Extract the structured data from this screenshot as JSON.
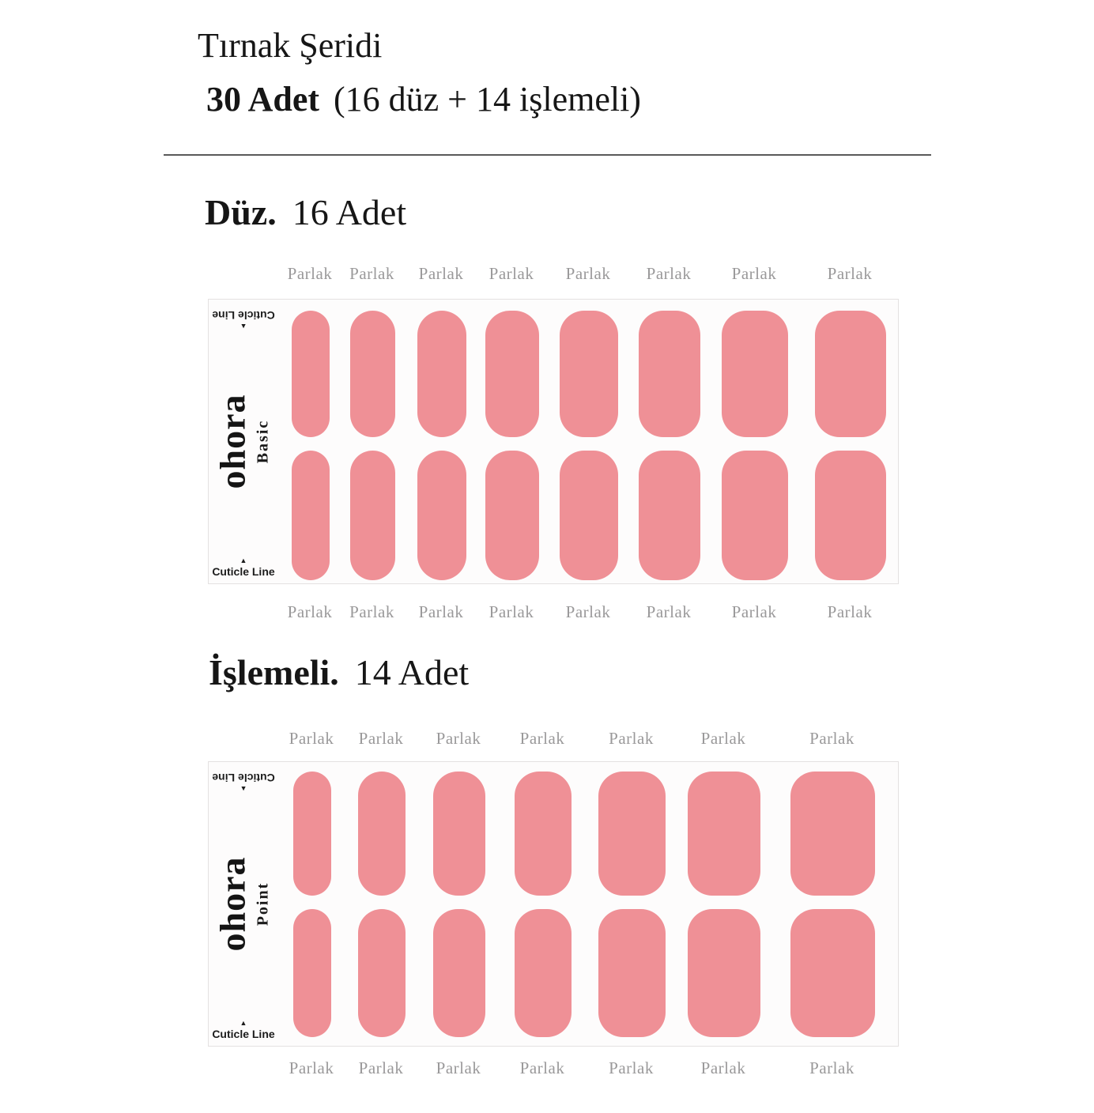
{
  "header": {
    "title": "Tırnak Şeridi",
    "count_bold": "30 Adet",
    "count_detail": "(16 düz + 14 işlemeli)"
  },
  "sections": [
    {
      "heading_bold": "Düz.",
      "heading_count": "16 Adet",
      "brand": "ohora",
      "line_name": "Basic",
      "cuticle_label": "Cuticle Line",
      "cuticle_arrow_icon": "▲",
      "finish_label": "Parlak",
      "columns": 8,
      "rows": 2,
      "total_nails": 16
    },
    {
      "heading_bold": "İşlemeli.",
      "heading_count": "14 Adet",
      "brand": "ohora",
      "line_name": "Point",
      "cuticle_label": "Cuticle Line",
      "cuticle_arrow_icon": "▲",
      "finish_label": "Parlak",
      "columns": 7,
      "rows": 2,
      "total_nails": 14
    }
  ],
  "colors": {
    "nail_pink": "#ef9096",
    "label_gray": "#9a999a",
    "text_black": "#161616",
    "sheet_bg": "#fdfcfc",
    "sheet_border": "#e4e1e1",
    "page_bg": "#ffffff"
  }
}
